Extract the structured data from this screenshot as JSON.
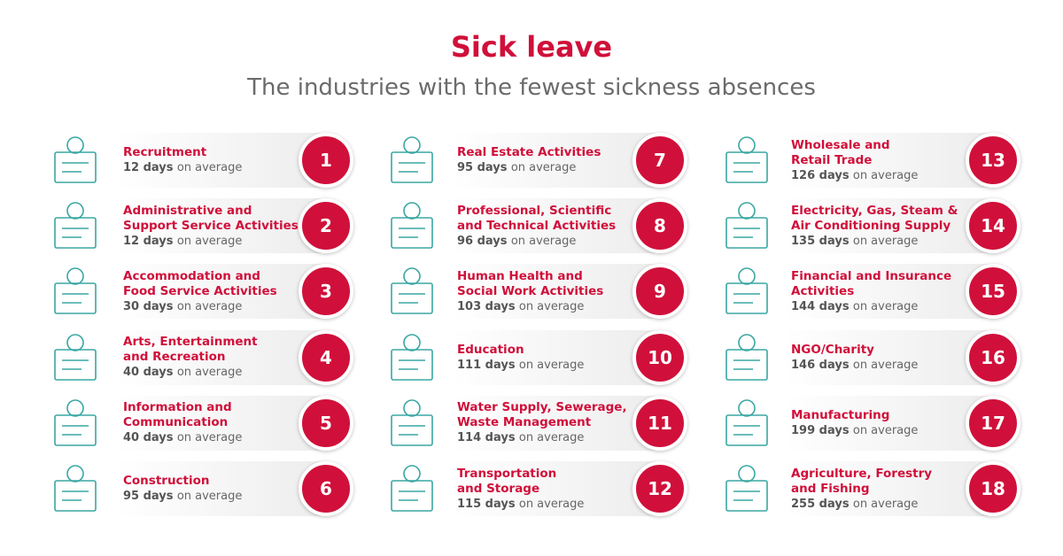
{
  "header": {
    "title": "Sick leave",
    "subtitle": "The industries with the fewest sickness absences"
  },
  "items": [
    {
      "rank": "1",
      "name_lines": [
        "Recruitment"
      ],
      "days": "12 days",
      "note": "on average"
    },
    {
      "rank": "2",
      "name_lines": [
        "Administrative and",
        "Support Service Activities"
      ],
      "days": "12 days",
      "note": "on average"
    },
    {
      "rank": "3",
      "name_lines": [
        "Accommodation and",
        "Food Service Activities"
      ],
      "days": "30 days",
      "note": "on average"
    },
    {
      "rank": "4",
      "name_lines": [
        "Arts, Entertainment",
        "and Recreation"
      ],
      "days": "40 days",
      "note": "on average"
    },
    {
      "rank": "5",
      "name_lines": [
        "Information and",
        "Communication"
      ],
      "days": "40 days",
      "note": "on average"
    },
    {
      "rank": "6",
      "name_lines": [
        "Construction"
      ],
      "days": "95 days",
      "note": "on average"
    },
    {
      "rank": "7",
      "name_lines": [
        "Real Estate Activities"
      ],
      "days": "95 days",
      "note": "on average"
    },
    {
      "rank": "8",
      "name_lines": [
        "Professional, Scientific",
        "and Technical Activities"
      ],
      "days": "96 days",
      "note": "on average"
    },
    {
      "rank": "9",
      "name_lines": [
        "Human Health and",
        "Social Work Activities"
      ],
      "days": "103 days",
      "note": "on average"
    },
    {
      "rank": "10",
      "name_lines": [
        "Education"
      ],
      "days": "111 days",
      "note": "on average"
    },
    {
      "rank": "11",
      "name_lines": [
        "Water Supply, Sewerage,",
        "Waste Management"
      ],
      "days": "114 days",
      "note": "on average"
    },
    {
      "rank": "12",
      "name_lines": [
        "Transportation",
        "and Storage"
      ],
      "days": "115 days",
      "note": "on average"
    },
    {
      "rank": "13",
      "name_lines": [
        "Wholesale and",
        "Retail Trade"
      ],
      "days": "126 days",
      "note": "on average"
    },
    {
      "rank": "14",
      "name_lines": [
        "Electricity, Gas, Steam &",
        "Air Conditioning Supply"
      ],
      "days": "135 days",
      "note": "on average"
    },
    {
      "rank": "15",
      "name_lines": [
        "Financial and Insurance",
        "Activities"
      ],
      "days": "144 days",
      "note": "on average"
    },
    {
      "rank": "16",
      "name_lines": [
        "NGO/Charity"
      ],
      "days": "146 days",
      "note": "on average"
    },
    {
      "rank": "17",
      "name_lines": [
        "Manufacturing"
      ],
      "days": "199 days",
      "note": "on average"
    },
    {
      "rank": "18",
      "name_lines": [
        "Agriculture, Forestry",
        "and Fishing"
      ],
      "days": "255 days",
      "note": "on average"
    }
  ]
}
